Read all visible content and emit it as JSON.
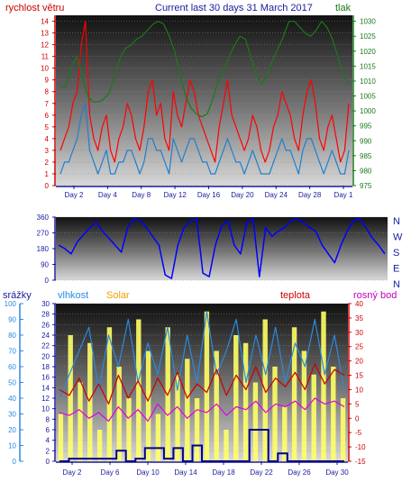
{
  "title": "Current last 30 days 31 March 2017",
  "colors": {
    "wind_speed": "#ff0000",
    "wind_avg": "#1e7fd0",
    "pressure": "#1a7a1a",
    "direction": "#0000ff",
    "humidity": "#2a8ae0",
    "temperature": "#cc0000",
    "dewpoint": "#e000e0",
    "rain": "#00008b",
    "solar": "#ffff66",
    "label_blue": "#1a1aa0",
    "label_orange": "#f0a000",
    "label_magenta": "#c000c0"
  },
  "chart_data": [
    {
      "type": "line",
      "ylabel_left": "rychlost větru",
      "ylabel_right": "tlak",
      "left_ticks": [
        "0",
        "1",
        "2",
        "3",
        "4",
        "5",
        "6",
        "7",
        "8",
        "9",
        "10",
        "11",
        "12",
        "13",
        "14"
      ],
      "right_ticks": [
        "975",
        "980",
        "985",
        "990",
        "995",
        "1000",
        "1005",
        "1010",
        "1015",
        "1020",
        "1025",
        "1030"
      ],
      "x_ticks": [
        "Day 2",
        "Day 4",
        "Day 8",
        "Day 12",
        "Day 16",
        "Day 20",
        "Day 24",
        "Day 28",
        "Day 1"
      ],
      "ylim_left": [
        0,
        14.5
      ],
      "ylim_right": [
        975,
        1032
      ],
      "series": [
        {
          "values": [
            3,
            4,
            5,
            7,
            8,
            12,
            14,
            6,
            4,
            3,
            5,
            6,
            3,
            2,
            4,
            5,
            7,
            6,
            4,
            3,
            5,
            8,
            9,
            6,
            7,
            4,
            3,
            8,
            6,
            5,
            7,
            9,
            8,
            6,
            5,
            4,
            3,
            2,
            5,
            7,
            9,
            6,
            5,
            4,
            3,
            4,
            6,
            5,
            3,
            2,
            3,
            5,
            6,
            8,
            7,
            6,
            4,
            3,
            6,
            8,
            9,
            7,
            4,
            3,
            5,
            6,
            4,
            2,
            3,
            7
          ]
        },
        {
          "values": [
            1,
            2,
            2,
            3,
            4,
            6,
            7,
            3,
            2,
            1,
            2,
            3,
            1,
            1,
            2,
            2,
            3,
            3,
            2,
            1,
            2,
            4,
            4,
            3,
            3,
            2,
            1,
            4,
            3,
            2,
            3,
            4,
            4,
            3,
            2,
            2,
            1,
            1,
            2,
            3,
            4,
            3,
            2,
            2,
            1,
            2,
            3,
            2,
            1,
            1,
            1,
            2,
            3,
            4,
            3,
            3,
            2,
            1,
            3,
            4,
            4,
            3,
            2,
            1,
            2,
            3,
            2,
            1,
            1,
            3
          ]
        },
        {
          "values": [
            1008,
            1008,
            1015,
            1018,
            1012,
            1005,
            1003,
            1003,
            1004,
            1006,
            1012,
            1018,
            1021,
            1022,
            1024,
            1025,
            1027,
            1029,
            1030,
            1029,
            1025,
            1020,
            1012,
            1005,
            1001,
            999,
            998,
            999,
            1004,
            1010,
            1014,
            1018,
            1022,
            1025,
            1024,
            1018,
            1012,
            1009,
            1012,
            1017,
            1021,
            1025,
            1030,
            1030,
            1028,
            1026,
            1025,
            1027,
            1030,
            1028,
            1024,
            1018,
            1012,
            1009
          ]
        }
      ]
    },
    {
      "type": "line",
      "ylim": [
        0,
        360
      ],
      "left_ticks": [
        "0",
        "90",
        "180",
        "270",
        "360"
      ],
      "right_labels": [
        "N",
        "W",
        "S",
        "E",
        "N"
      ],
      "series": [
        {
          "values": [
            200,
            180,
            150,
            220,
            260,
            300,
            330,
            280,
            240,
            200,
            160,
            300,
            350,
            340,
            300,
            250,
            200,
            30,
            10,
            200,
            300,
            340,
            350,
            40,
            20,
            200,
            310,
            340,
            200,
            150,
            330,
            350,
            20,
            300,
            250,
            280,
            300,
            340,
            350,
            330,
            300,
            280,
            200,
            150,
            100,
            200,
            280,
            340,
            350,
            300,
            240,
            200,
            150
          ]
        }
      ]
    },
    {
      "type": "line",
      "labels": {
        "rain": "srážky",
        "humidity": "vlhkost",
        "solar": "Solar",
        "temperature": "teplota",
        "dewpoint": "rosný bod"
      },
      "rain_ticks": [
        "0",
        "2",
        "4",
        "6",
        "8",
        "10",
        "12",
        "14",
        "16",
        "18",
        "20",
        "22",
        "24",
        "26",
        "28",
        "30"
      ],
      "humidity_ticks": [
        "0",
        "10",
        "20",
        "30",
        "40",
        "50",
        "60",
        "70",
        "80",
        "90",
        "100"
      ],
      "temp_ticks": [
        "-15",
        "-10",
        "-5",
        "0",
        "5",
        "10",
        "15",
        "20",
        "25",
        "30",
        "35",
        "40"
      ],
      "x_ticks": [
        "Day 2",
        "Day 6",
        "Day 10",
        "Day 14",
        "Day 18",
        "Day 22",
        "Day 26",
        "Day 30"
      ],
      "ylim_rain": [
        0,
        30
      ],
      "ylim_humidity": [
        0,
        100
      ],
      "ylim_temp": [
        -15,
        40
      ],
      "series": [
        {
          "values": [
            40,
            55,
            70,
            85,
            45,
            80,
            60,
            90,
            50,
            75,
            55,
            85,
            45,
            80,
            50,
            95,
            55,
            70,
            90,
            50,
            80,
            55,
            85,
            50,
            75,
            60,
            90,
            55,
            80,
            45
          ]
        },
        {
          "values": [
            10,
            8,
            14,
            6,
            12,
            5,
            15,
            7,
            13,
            6,
            14,
            8,
            16,
            7,
            12,
            9,
            17,
            8,
            15,
            10,
            18,
            9,
            14,
            11,
            16,
            10,
            19,
            12,
            17,
            15
          ]
        },
        {
          "values": [
            2,
            1,
            3,
            0,
            2,
            -1,
            4,
            0,
            3,
            -1,
            5,
            1,
            4,
            0,
            3,
            2,
            5,
            1,
            4,
            3,
            6,
            2,
            5,
            4,
            6,
            3,
            7,
            5,
            6,
            4
          ]
        },
        {
          "values": [
            0,
            0.5,
            0.5,
            0.5,
            0.5,
            0.5,
            2,
            0,
            0.5,
            2.5,
            2.5,
            0.5,
            2.5,
            0,
            3,
            0,
            0,
            0,
            0,
            0,
            6,
            6,
            0,
            1.5,
            0,
            0,
            0,
            0,
            0,
            0
          ]
        },
        {
          "values": [
            30,
            80,
            50,
            75,
            20,
            85,
            60,
            40,
            90,
            70,
            30,
            85,
            55,
            65,
            40,
            95,
            70,
            20,
            80,
            75,
            50,
            90,
            60,
            35,
            85,
            70,
            55,
            95,
            60,
            40
          ]
        }
      ]
    }
  ]
}
